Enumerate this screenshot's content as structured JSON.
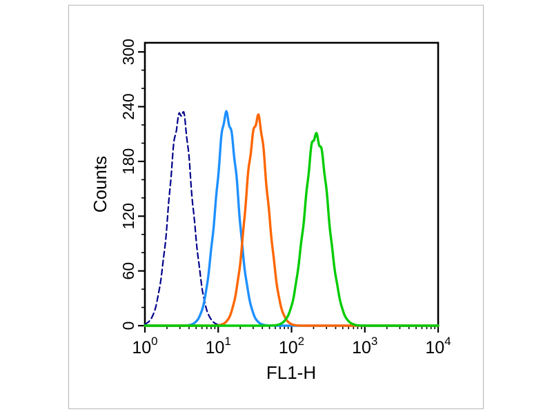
{
  "figure": {
    "background": "#ffffff",
    "border_color": "#b5b5b5"
  },
  "chart_data": {
    "type": "line",
    "subtype": "flow-cytometry-histogram",
    "title": "",
    "xlabel": "FL1-H",
    "ylabel": "Counts",
    "x_scale": "log10",
    "xlim": [
      1,
      10000
    ],
    "x_tick_exponents": [
      0,
      1,
      2,
      3,
      4
    ],
    "ylim": [
      0,
      310
    ],
    "y_ticks": [
      0,
      60,
      120,
      180,
      240,
      300
    ],
    "y_minor_step": 20,
    "grid": false,
    "legend": "none",
    "axis_color": "#000000",
    "series": [
      {
        "name": "dark-blue-dashed-peak",
        "color": "#00008B",
        "line_style": "dashed",
        "line_width": 2.2,
        "peak_x": 3.1,
        "center_log10": 0.49,
        "sigma_log10": 0.155,
        "peak_counts": 236
      },
      {
        "name": "light-blue-peak",
        "color": "#1E90FF",
        "line_style": "solid",
        "line_width": 3.4,
        "peak_x": 13,
        "center_log10": 1.12,
        "sigma_log10": 0.15,
        "peak_counts": 231
      },
      {
        "name": "orange-peak",
        "color": "#FF6600",
        "line_style": "solid",
        "line_width": 3.4,
        "peak_x": 34,
        "center_log10": 1.53,
        "sigma_log10": 0.15,
        "peak_counts": 227
      },
      {
        "name": "green-peak",
        "color": "#00CC00",
        "line_style": "solid",
        "line_width": 3.4,
        "peak_x": 220,
        "center_log10": 2.34,
        "sigma_log10": 0.16,
        "peak_counts": 210
      }
    ]
  }
}
